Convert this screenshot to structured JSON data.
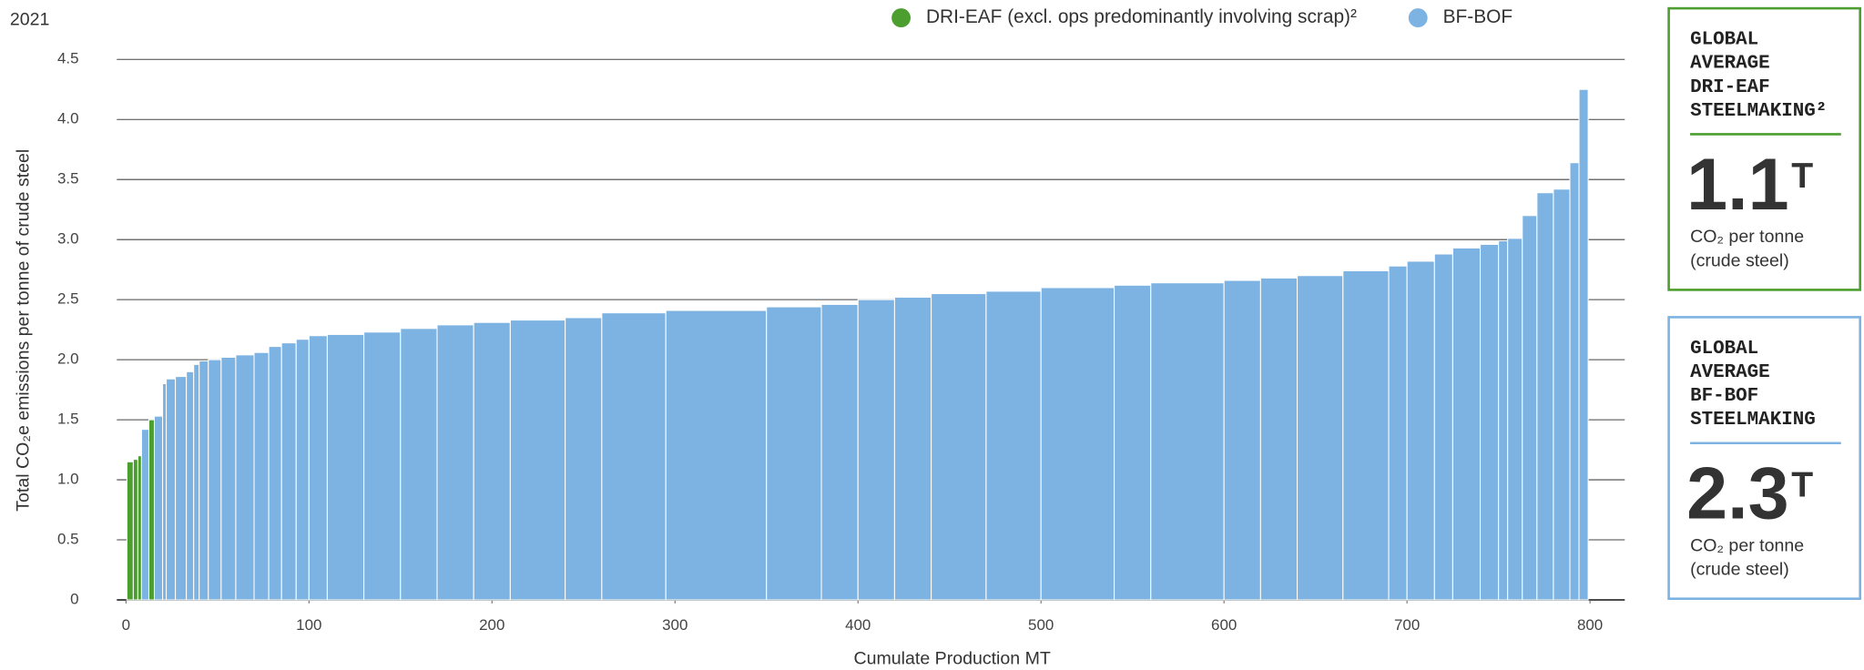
{
  "chart_data": {
    "type": "bar",
    "year": "2021",
    "x_label": "Cumulate Production MT",
    "y_label": "Total CO₂e emissions per tonne of crude steel",
    "xlim": [
      -5,
      819
    ],
    "ylim": [
      0,
      4.5
    ],
    "xticks": [
      0,
      100,
      200,
      300,
      400,
      500,
      600,
      700,
      800
    ],
    "yticks": [
      0,
      0.5,
      {
        "value": 1,
        "label": "1.0"
      },
      1.5,
      {
        "value": 2,
        "label": "2.0"
      },
      2.5,
      {
        "value": 3,
        "label": "3.0"
      },
      3.5,
      {
        "value": 4,
        "label": "4.0"
      },
      4.5
    ],
    "grid": true,
    "series": [
      {
        "name": "DRI-EAF (excl. ops predominantly involving scrap)²",
        "color": "#4c9e2f",
        "x_start": [
          0.5,
          4,
          6.5,
          12.5
        ],
        "x_end": [
          4,
          6.5,
          8.5,
          15.5
        ],
        "values": [
          1.15,
          1.17,
          1.2,
          1.5
        ]
      },
      {
        "name": "BF-BOF",
        "color": "#7db3e2",
        "x_start": [
          8.5,
          15.5,
          20,
          22,
          27,
          33,
          37,
          40,
          45,
          52,
          60,
          70,
          78,
          85,
          93,
          100,
          110,
          130,
          150,
          170,
          190,
          210,
          240,
          260,
          295,
          350,
          380,
          400,
          420,
          440,
          470,
          500,
          540,
          560,
          600,
          620,
          640,
          665,
          690,
          700,
          715,
          725,
          740,
          750,
          755,
          763,
          771,
          780,
          789,
          794
        ],
        "x_end": [
          12.5,
          20,
          22,
          27,
          33,
          37,
          40,
          45,
          52,
          60,
          70,
          78,
          85,
          93,
          100,
          110,
          130,
          150,
          170,
          190,
          210,
          240,
          260,
          295,
          350,
          380,
          400,
          420,
          440,
          470,
          500,
          540,
          560,
          600,
          620,
          640,
          665,
          690,
          700,
          715,
          725,
          740,
          750,
          755,
          763,
          771,
          780,
          789,
          794,
          799
        ],
        "values": [
          1.42,
          1.53,
          1.8,
          1.84,
          1.86,
          1.9,
          1.96,
          1.99,
          2.0,
          2.02,
          2.04,
          2.06,
          2.11,
          2.14,
          2.17,
          2.2,
          2.21,
          2.23,
          2.26,
          2.29,
          2.31,
          2.33,
          2.35,
          2.39,
          2.41,
          2.44,
          2.46,
          2.5,
          2.52,
          2.55,
          2.57,
          2.6,
          2.62,
          2.64,
          2.66,
          2.68,
          2.7,
          2.74,
          2.78,
          2.82,
          2.88,
          2.93,
          2.96,
          2.99,
          3.01,
          3.2,
          3.39,
          3.42,
          3.64,
          4.25
        ]
      }
    ]
  },
  "panels": [
    {
      "title_lines": [
        "GLOBAL",
        "AVERAGE",
        "DRI-EAF",
        "STEELMAKING²"
      ],
      "value": "1.1",
      "value_unit": "T",
      "unit_lines": [
        "CO₂ per tonne",
        "(crude steel)"
      ],
      "color": "#4c9e2f"
    },
    {
      "title_lines": [
        "GLOBAL",
        "AVERAGE",
        "BF-BOF",
        "STEELMAKING"
      ],
      "value": "2.3",
      "value_unit": "T",
      "unit_lines": [
        "CO₂ per tonne",
        "(crude steel)"
      ],
      "color": "#7db3e2"
    }
  ]
}
